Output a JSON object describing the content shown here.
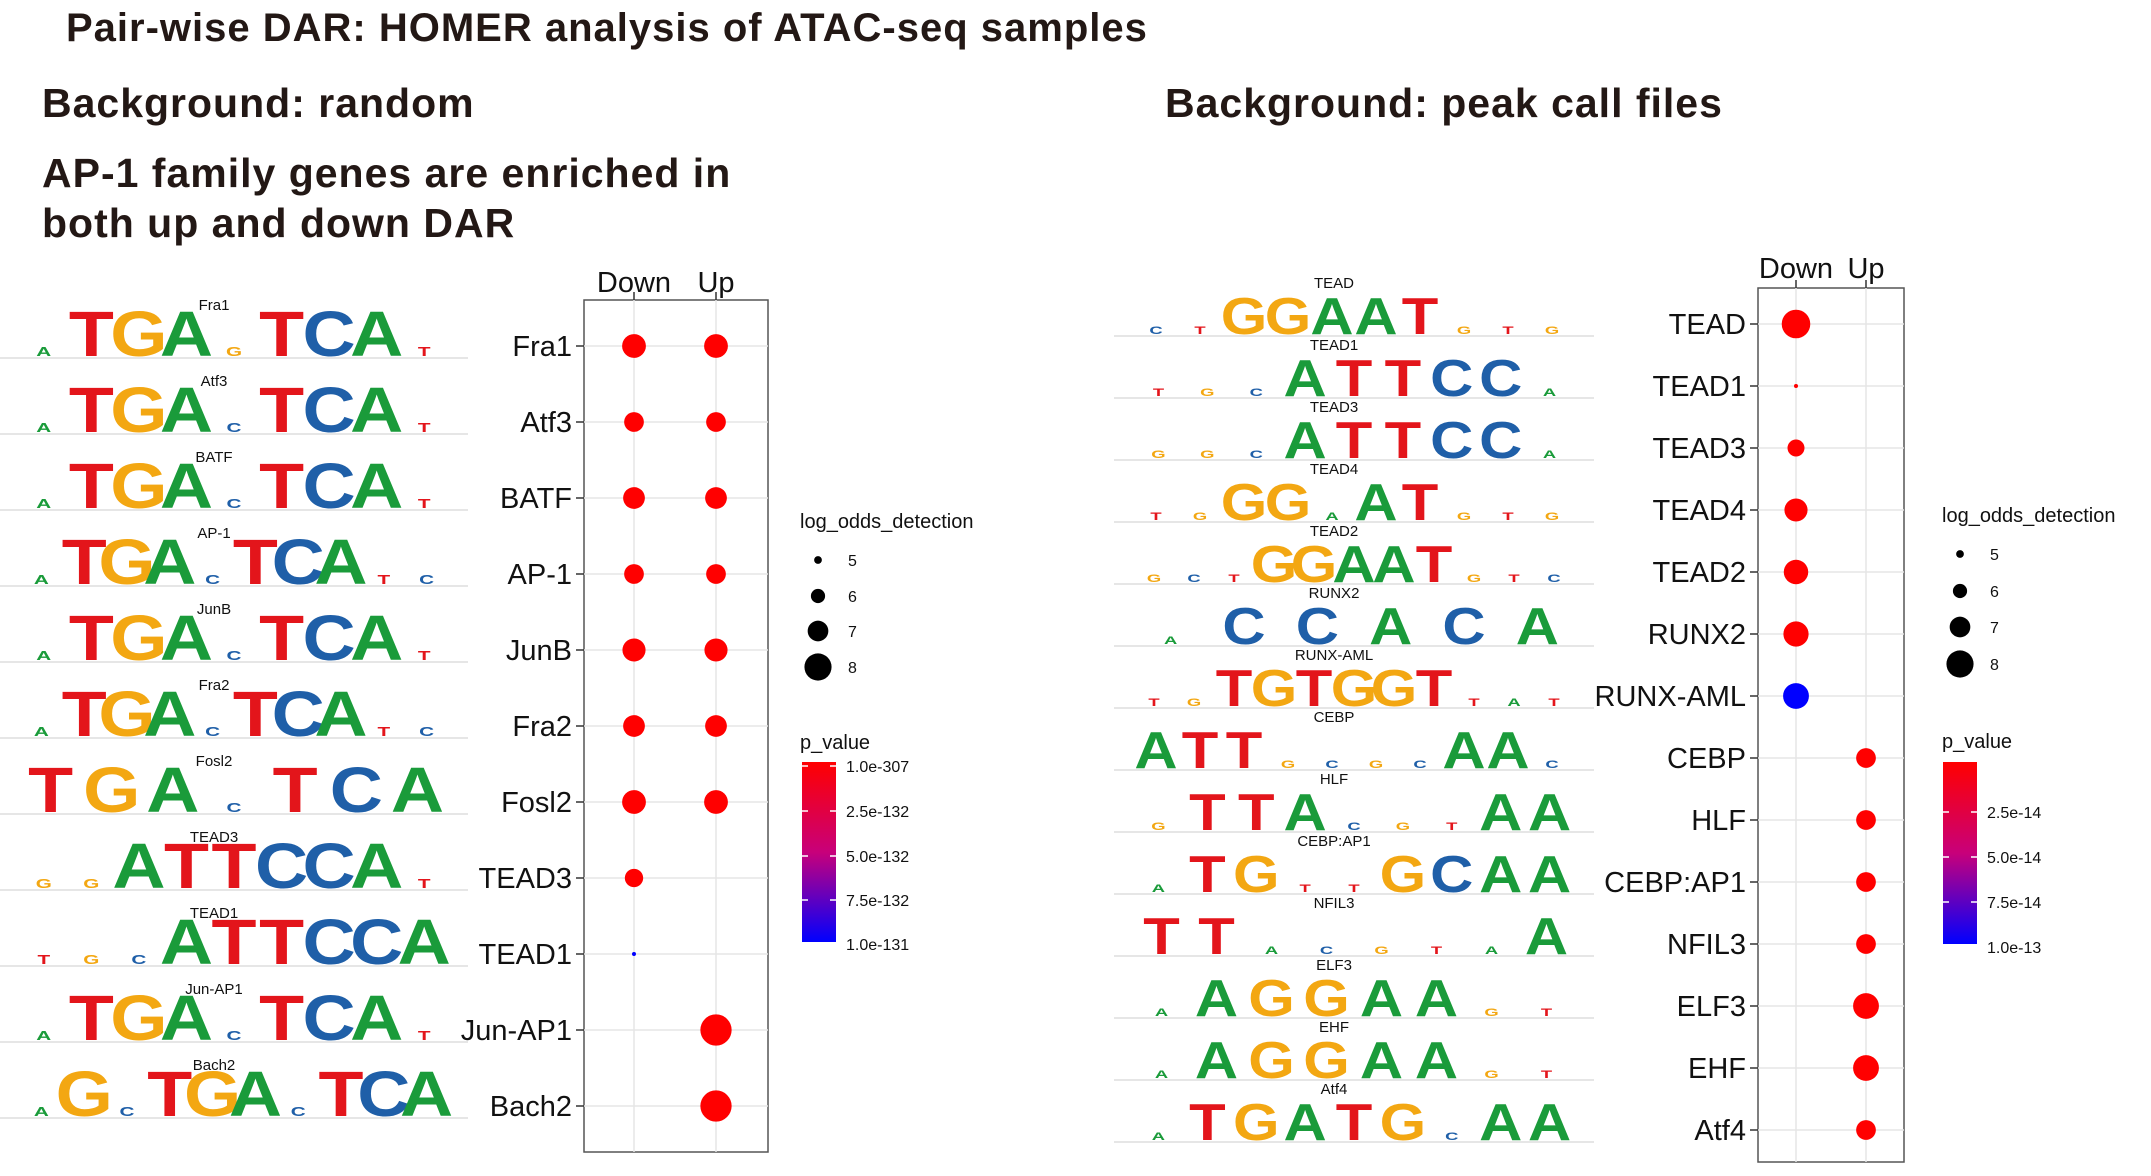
{
  "header": {
    "title": "Pair-wise DAR: HOMER analysis of ATAC-seq samples",
    "left_background": "Background: random",
    "right_background": "Background: peak call files",
    "note_line1": "AP-1 family genes are enriched in",
    "note_line2": "both up and down DAR"
  },
  "colors": {
    "A": "#1a9b3a",
    "C": "#1f5fa8",
    "G": "#f3a712",
    "T": "#e3151b",
    "p_high": "#ff0000",
    "p_low": "#0000ff"
  },
  "chart_data": [
    {
      "type": "scatter",
      "title": "Background: random",
      "categories_x": [
        "Down",
        "Up"
      ],
      "categories_y": [
        "Fra1",
        "Atf3",
        "BATF",
        "AP-1",
        "JunB",
        "Fra2",
        "Fosl2",
        "TEAD3",
        "TEAD1",
        "Jun-AP1",
        "Bach2"
      ],
      "logos": [
        {
          "name": "Fra1",
          "seq": "aTGAgTCAt"
        },
        {
          "name": "Atf3",
          "seq": "aTGAcTCAt"
        },
        {
          "name": "BATF",
          "seq": "aTGAcTCAt"
        },
        {
          "name": "AP-1",
          "seq": "aTGAcTCAtc"
        },
        {
          "name": "JunB",
          "seq": "aTGAcTCAt"
        },
        {
          "name": "Fra2",
          "seq": "aTGAcTCAtc"
        },
        {
          "name": "Fosl2",
          "seq": "TGAcTCA"
        },
        {
          "name": "TEAD3",
          "seq": "ggATTCCAt"
        },
        {
          "name": "TEAD1",
          "seq": "tgcATTCCA"
        },
        {
          "name": "Jun-AP1",
          "seq": "aTGAcTCAt"
        },
        {
          "name": "Bach2",
          "seq": "aGcTGAcTCA"
        }
      ],
      "points": [
        {
          "motif": "Fra1",
          "group": "Down",
          "log_odds_detection": 7.3,
          "p_value": 1e-307
        },
        {
          "motif": "Fra1",
          "group": "Up",
          "log_odds_detection": 7.3,
          "p_value": 1e-307
        },
        {
          "motif": "Atf3",
          "group": "Down",
          "log_odds_detection": 6.7,
          "p_value": 1e-307
        },
        {
          "motif": "Atf3",
          "group": "Up",
          "log_odds_detection": 6.7,
          "p_value": 1e-307
        },
        {
          "motif": "BATF",
          "group": "Down",
          "log_odds_detection": 7.0,
          "p_value": 1e-307
        },
        {
          "motif": "BATF",
          "group": "Up",
          "log_odds_detection": 7.0,
          "p_value": 1e-307
        },
        {
          "motif": "AP-1",
          "group": "Down",
          "log_odds_detection": 6.7,
          "p_value": 1e-307
        },
        {
          "motif": "AP-1",
          "group": "Up",
          "log_odds_detection": 6.7,
          "p_value": 1e-307
        },
        {
          "motif": "JunB",
          "group": "Down",
          "log_odds_detection": 7.2,
          "p_value": 1e-307
        },
        {
          "motif": "JunB",
          "group": "Up",
          "log_odds_detection": 7.2,
          "p_value": 1e-307
        },
        {
          "motif": "Fra2",
          "group": "Down",
          "log_odds_detection": 7.0,
          "p_value": 1e-307
        },
        {
          "motif": "Fra2",
          "group": "Up",
          "log_odds_detection": 7.0,
          "p_value": 1e-307
        },
        {
          "motif": "Fosl2",
          "group": "Down",
          "log_odds_detection": 7.3,
          "p_value": 1e-307
        },
        {
          "motif": "Fosl2",
          "group": "Up",
          "log_odds_detection": 7.3,
          "p_value": 1e-307
        },
        {
          "motif": "TEAD3",
          "group": "Down",
          "log_odds_detection": 6.5,
          "p_value": 1e-307
        },
        {
          "motif": "TEAD1",
          "group": "Down",
          "log_odds_detection": 4.3,
          "p_value": 1e-131
        },
        {
          "motif": "Jun-AP1",
          "group": "Up",
          "log_odds_detection": 8.4,
          "p_value": 1e-307
        },
        {
          "motif": "Bach2",
          "group": "Up",
          "log_odds_detection": 8.4,
          "p_value": 1e-307
        }
      ],
      "size_legend": {
        "title": "log_odds_detection",
        "values": [
          5,
          6,
          7,
          8
        ]
      },
      "color_legend": {
        "title": "p_value",
        "labels": [
          "1.0e-307",
          "2.5e-132",
          "5.0e-132",
          "7.5e-132",
          "1.0e-131"
        ]
      }
    },
    {
      "type": "scatter",
      "title": "Background: peak call files",
      "categories_x": [
        "Down",
        "Up"
      ],
      "categories_y": [
        "TEAD",
        "TEAD1",
        "TEAD3",
        "TEAD4",
        "TEAD2",
        "RUNX2",
        "RUNX-AML",
        "CEBP",
        "HLF",
        "CEBP:AP1",
        "NFIL3",
        "ELF3",
        "EHF",
        "Atf4"
      ],
      "logos": [
        {
          "name": "TEAD",
          "seq": "ctGGAATgtg"
        },
        {
          "name": "TEAD1",
          "seq": "tgcATTCCa"
        },
        {
          "name": "TEAD3",
          "seq": "ggcATTCCa"
        },
        {
          "name": "TEAD4",
          "seq": "tgGGaATgtg"
        },
        {
          "name": "TEAD2",
          "seq": "gctGGAATgtc"
        },
        {
          "name": "RUNX2",
          "seq": "aCCACA"
        },
        {
          "name": "RUNX-AML",
          "seq": "tgTGTGGTtat"
        },
        {
          "name": "CEBP",
          "seq": "ATTgcgcAAc"
        },
        {
          "name": "HLF",
          "seq": "gTTAcgtAA"
        },
        {
          "name": "CEBP:AP1",
          "seq": "aTGttGCAA"
        },
        {
          "name": "NFIL3",
          "seq": "TTacgtaA"
        },
        {
          "name": "ELF3",
          "seq": "aAGGAAgt"
        },
        {
          "name": "EHF",
          "seq": "aAGGAAgt"
        },
        {
          "name": "Atf4",
          "seq": "aTGATGcAA"
        }
      ],
      "points": [
        {
          "motif": "TEAD",
          "group": "Down",
          "log_odds_detection": 8.0,
          "p_value": 1e-20
        },
        {
          "motif": "TEAD1",
          "group": "Down",
          "log_odds_detection": 4.2,
          "p_value": 1e-20
        },
        {
          "motif": "TEAD3",
          "group": "Down",
          "log_odds_detection": 6.3,
          "p_value": 1e-20
        },
        {
          "motif": "TEAD4",
          "group": "Down",
          "log_odds_detection": 7.2,
          "p_value": 1e-20
        },
        {
          "motif": "TEAD2",
          "group": "Down",
          "log_odds_detection": 7.4,
          "p_value": 1e-20
        },
        {
          "motif": "RUNX2",
          "group": "Down",
          "log_odds_detection": 7.5,
          "p_value": 1e-20
        },
        {
          "motif": "RUNX-AML",
          "group": "Down",
          "log_odds_detection": 7.6,
          "p_value": 1e-13
        },
        {
          "motif": "CEBP",
          "group": "Up",
          "log_odds_detection": 6.7,
          "p_value": 1e-20
        },
        {
          "motif": "HLF",
          "group": "Up",
          "log_odds_detection": 6.7,
          "p_value": 1e-20
        },
        {
          "motif": "CEBP:AP1",
          "group": "Up",
          "log_odds_detection": 6.7,
          "p_value": 1e-20
        },
        {
          "motif": "NFIL3",
          "group": "Up",
          "log_odds_detection": 6.7,
          "p_value": 1e-20
        },
        {
          "motif": "ELF3",
          "group": "Up",
          "log_odds_detection": 7.6,
          "p_value": 1e-20
        },
        {
          "motif": "EHF",
          "group": "Up",
          "log_odds_detection": 7.6,
          "p_value": 1e-20
        },
        {
          "motif": "Atf4",
          "group": "Up",
          "log_odds_detection": 6.7,
          "p_value": 1e-20
        }
      ],
      "size_legend": {
        "title": "log_odds_detection",
        "values": [
          5,
          6,
          7,
          8
        ]
      },
      "color_legend": {
        "title": "p_value",
        "labels": [
          "2.5e-14",
          "5.0e-14",
          "7.5e-14",
          "1.0e-13"
        ]
      }
    }
  ]
}
